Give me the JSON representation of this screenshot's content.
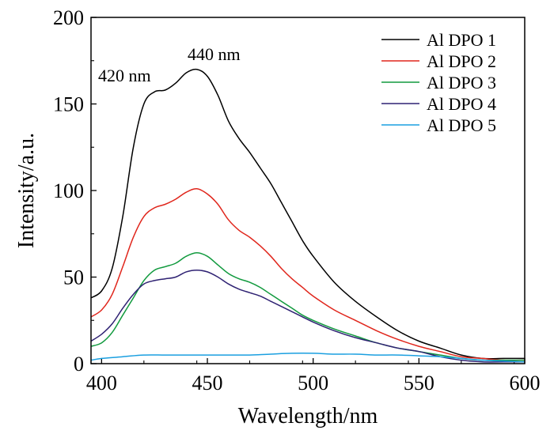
{
  "chart_data": {
    "type": "line",
    "xlabel": "Wavelength/nm",
    "ylabel": "Intensity/a.u.",
    "xlim": [
      395,
      600
    ],
    "ylim": [
      0,
      200
    ],
    "xticks": [
      400,
      450,
      500,
      550,
      600
    ],
    "yticks": [
      0,
      50,
      100,
      150,
      200
    ],
    "legend_position": "top-right",
    "annotations": [
      {
        "text": "420 nm",
        "x": 420,
        "y": 165
      },
      {
        "text": "440 nm",
        "x": 444,
        "y": 180
      }
    ],
    "series": [
      {
        "name": "Al DPO 1",
        "color": "#000000",
        "x": [
          395,
          400,
          405,
          410,
          415,
          420,
          425,
          430,
          435,
          440,
          445,
          450,
          455,
          460,
          465,
          470,
          475,
          480,
          485,
          490,
          495,
          500,
          510,
          520,
          530,
          540,
          550,
          560,
          570,
          580,
          590,
          600
        ],
        "y": [
          38,
          42,
          55,
          85,
          125,
          150,
          157,
          158,
          162,
          168,
          170,
          166,
          155,
          140,
          130,
          122,
          113,
          104,
          93,
          82,
          71,
          62,
          47,
          36,
          27,
          19,
          13,
          9,
          5,
          3,
          3,
          3
        ]
      },
      {
        "name": "Al DPO 2",
        "color": "#e0261c",
        "x": [
          395,
          400,
          405,
          410,
          415,
          420,
          425,
          430,
          435,
          440,
          445,
          450,
          455,
          460,
          465,
          470,
          475,
          480,
          485,
          490,
          495,
          500,
          510,
          520,
          530,
          540,
          550,
          560,
          570,
          580,
          590,
          600
        ],
        "y": [
          27,
          31,
          40,
          56,
          73,
          85,
          90,
          92,
          95,
          99,
          101,
          98,
          92,
          83,
          77,
          73,
          68,
          62,
          55,
          49,
          44,
          39,
          31,
          25,
          19,
          14,
          10,
          7,
          4,
          3,
          2,
          2
        ]
      },
      {
        "name": "Al DPO 3",
        "color": "#119a3e",
        "x": [
          395,
          400,
          405,
          410,
          415,
          420,
          425,
          430,
          435,
          440,
          445,
          450,
          455,
          460,
          465,
          470,
          475,
          480,
          485,
          490,
          495,
          500,
          510,
          520,
          530,
          540,
          550,
          560,
          570,
          580,
          590,
          600
        ],
        "y": [
          10,
          12,
          18,
          28,
          38,
          48,
          54,
          56,
          58,
          62,
          64,
          62,
          57,
          52,
          49,
          47,
          44,
          40,
          36,
          32,
          28,
          25,
          20,
          16,
          12,
          9,
          7,
          5,
          3,
          2,
          2,
          2
        ]
      },
      {
        "name": "Al DPO 4",
        "color": "#2f2273",
        "x": [
          395,
          400,
          405,
          410,
          415,
          420,
          425,
          430,
          435,
          440,
          445,
          450,
          455,
          460,
          465,
          470,
          475,
          480,
          485,
          490,
          495,
          500,
          510,
          520,
          530,
          540,
          550,
          560,
          570,
          580,
          590,
          600
        ],
        "y": [
          13,
          17,
          23,
          32,
          40,
          46,
          48,
          49,
          50,
          53,
          54,
          53,
          50,
          46,
          43,
          41,
          39,
          36,
          33,
          30,
          27,
          24,
          19,
          15,
          12,
          9,
          7,
          4,
          2,
          1,
          1,
          1
        ]
      },
      {
        "name": "Al DPO 5",
        "color": "#1a9fe0",
        "x": [
          395,
          400,
          410,
          420,
          430,
          440,
          450,
          460,
          470,
          480,
          490,
          500,
          510,
          520,
          530,
          540,
          550,
          560,
          570,
          580,
          590,
          600
        ],
        "y": [
          2,
          3,
          4,
          5,
          5,
          5,
          5,
          5,
          5,
          5.5,
          6,
          6,
          5.5,
          5.5,
          5,
          5,
          4.5,
          4,
          3,
          2,
          1.5,
          1
        ]
      }
    ]
  }
}
